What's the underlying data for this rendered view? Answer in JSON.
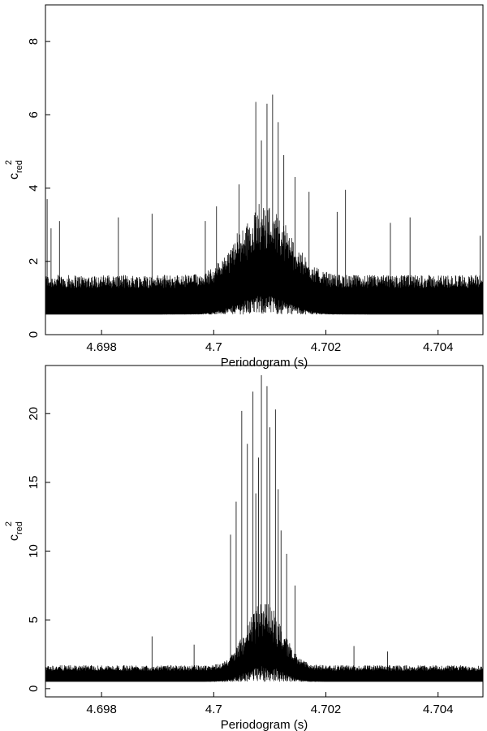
{
  "chart_data": [
    {
      "type": "line",
      "title": "",
      "xlabel": "Periodogram (s)",
      "ylabel": {
        "base": "c",
        "sub": "red",
        "sup": "2"
      },
      "xlim": [
        4.697,
        4.7048
      ],
      "ylim": [
        0,
        9
      ],
      "xticks": [
        4.698,
        4.7,
        4.702,
        4.704
      ],
      "xtick_labels": [
        "4.698",
        "4.7",
        "4.702",
        "4.704"
      ],
      "yticks": [
        0,
        2,
        4,
        6,
        8
      ],
      "ytick_labels": [
        "0",
        "2",
        "4",
        "6",
        "8"
      ],
      "grid": false,
      "series_color": "#000000",
      "series": [
        {
          "shape": "noise_with_peak",
          "baseline": 1.0,
          "noise_half_range": 0.45,
          "peak_center": 4.7009,
          "peak_width": 0.00045,
          "peak_height": 1.3,
          "points": [
            [
              4.69703,
              3.7
            ],
            [
              4.6971,
              2.9
            ],
            [
              4.69725,
              3.1
            ],
            [
              4.6983,
              3.2
            ],
            [
              4.6989,
              3.3
            ],
            [
              4.69985,
              3.1
            ],
            [
              4.70005,
              3.5
            ],
            [
              4.70045,
              4.1
            ],
            [
              4.70075,
              6.35
            ],
            [
              4.70085,
              5.3
            ],
            [
              4.70095,
              6.3
            ],
            [
              4.70105,
              6.55
            ],
            [
              4.70115,
              5.8
            ],
            [
              4.70125,
              4.9
            ],
            [
              4.70145,
              4.3
            ],
            [
              4.7017,
              3.9
            ],
            [
              4.7022,
              3.35
            ],
            [
              4.70235,
              3.95
            ],
            [
              4.70315,
              3.05
            ],
            [
              4.7035,
              3.2
            ],
            [
              4.70475,
              2.7
            ]
          ]
        }
      ]
    },
    {
      "type": "line",
      "title": "",
      "xlabel": "Periodogram (s)",
      "ylabel": {
        "base": "c",
        "sub": "red",
        "sup": "2"
      },
      "xlim": [
        4.697,
        4.7048
      ],
      "ylim": [
        -0.6,
        23.5
      ],
      "xticks": [
        4.698,
        4.7,
        4.702,
        4.704
      ],
      "xtick_labels": [
        "4.698",
        "4.7",
        "4.702",
        "4.704"
      ],
      "yticks": [
        0,
        5,
        10,
        15,
        20
      ],
      "ytick_labels": [
        "0",
        "5",
        "10",
        "15",
        "20"
      ],
      "grid": false,
      "series_color": "#000000",
      "series": [
        {
          "shape": "noise_with_peak",
          "baseline": 1.0,
          "noise_half_range": 0.5,
          "peak_center": 4.7009,
          "peak_width": 0.00032,
          "peak_height": 3.0,
          "points": [
            [
              4.6989,
              3.8
            ],
            [
              4.69965,
              3.2
            ],
            [
              4.7003,
              11.2
            ],
            [
              4.7004,
              13.6
            ],
            [
              4.7005,
              20.2
            ],
            [
              4.7006,
              17.8
            ],
            [
              4.7007,
              21.6
            ],
            [
              4.70075,
              14.2
            ],
            [
              4.7008,
              16.8
            ],
            [
              4.70085,
              22.8
            ],
            [
              4.70095,
              22.0
            ],
            [
              4.701,
              19.0
            ],
            [
              4.7011,
              20.3
            ],
            [
              4.70115,
              14.5
            ],
            [
              4.7012,
              11.5
            ],
            [
              4.7013,
              9.8
            ],
            [
              4.70145,
              7.5
            ],
            [
              4.7025,
              3.1
            ],
            [
              4.7031,
              2.7
            ]
          ]
        }
      ]
    }
  ]
}
